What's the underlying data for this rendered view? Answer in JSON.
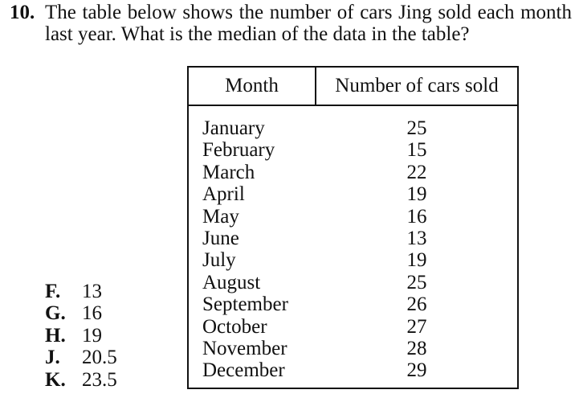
{
  "question": {
    "number": "10.",
    "text": "The table below shows the number of cars Jing sold each month last year. What is the median of the data in the table?"
  },
  "table": {
    "headers": [
      "Month",
      "Number of cars sold"
    ],
    "rows": [
      {
        "month": "January",
        "cars": "25"
      },
      {
        "month": "February",
        "cars": "15"
      },
      {
        "month": "March",
        "cars": "22"
      },
      {
        "month": "April",
        "cars": "19"
      },
      {
        "month": "May",
        "cars": "16"
      },
      {
        "month": "June",
        "cars": "13"
      },
      {
        "month": "July",
        "cars": "19"
      },
      {
        "month": "August",
        "cars": "25"
      },
      {
        "month": "September",
        "cars": "26"
      },
      {
        "month": "October",
        "cars": "27"
      },
      {
        "month": "November",
        "cars": "28"
      },
      {
        "month": "December",
        "cars": "29"
      }
    ]
  },
  "choices": [
    {
      "letter": "F.",
      "value": "13"
    },
    {
      "letter": "G.",
      "value": "16"
    },
    {
      "letter": "H.",
      "value": "19"
    },
    {
      "letter": "J.",
      "value": "20.5"
    },
    {
      "letter": "K.",
      "value": "23.5"
    }
  ]
}
